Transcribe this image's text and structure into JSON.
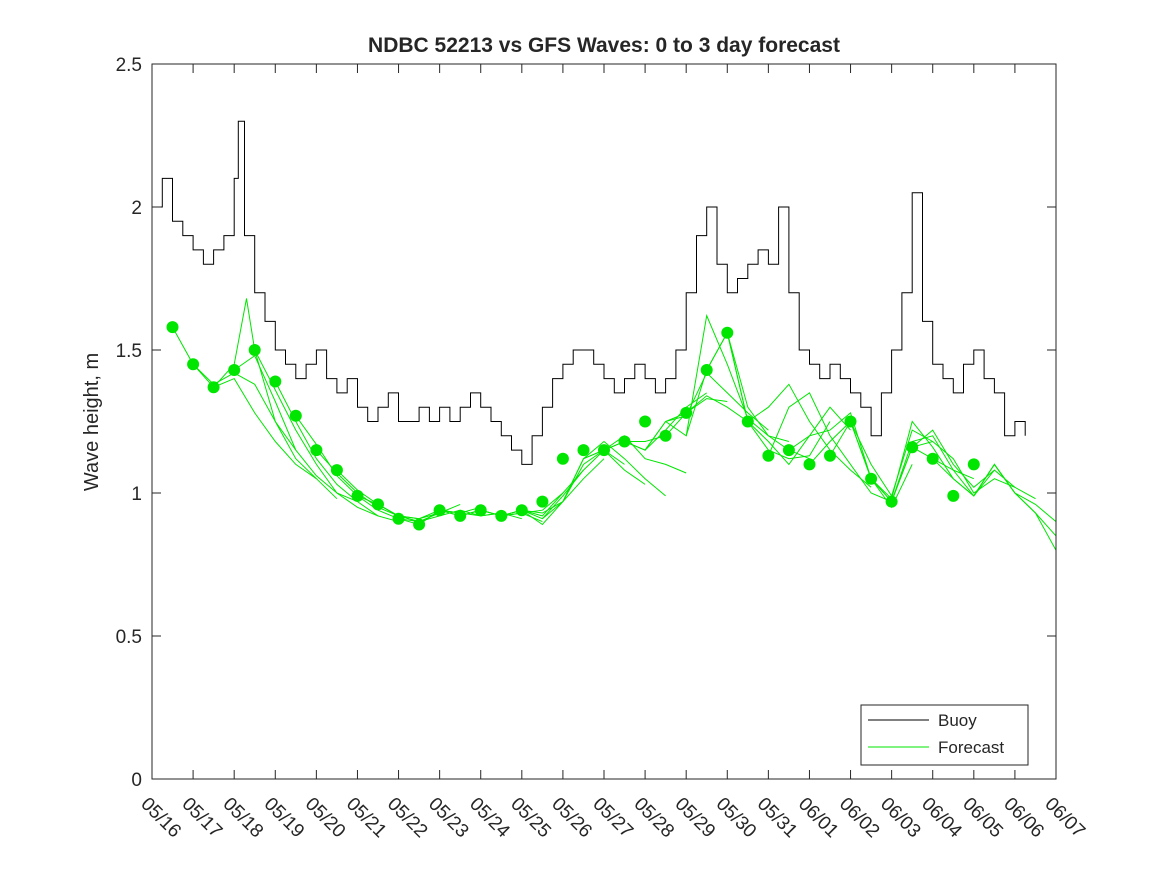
{
  "chart_data": {
    "type": "line",
    "title": "NDBC 52213 vs GFS Waves: 0 to 3 day forecast",
    "xlabel": "",
    "ylabel": "Wave height, m",
    "ylim": [
      0,
      2.5
    ],
    "yticks": [
      "0",
      "0.5",
      "1",
      "1.5",
      "2",
      "2.5"
    ],
    "xlim": [
      0,
      22
    ],
    "xticks": [
      "05/16",
      "05/17",
      "05/18",
      "05/19",
      "05/20",
      "05/21",
      "05/22",
      "05/23",
      "05/24",
      "05/25",
      "05/26",
      "05/27",
      "05/28",
      "05/29",
      "05/30",
      "05/31",
      "06/01",
      "06/02",
      "06/03",
      "06/04",
      "06/05",
      "06/06",
      "06/07"
    ],
    "grid": false,
    "legend": {
      "position": "bottom-right",
      "entries": [
        "Buoy",
        "Forecast"
      ]
    },
    "colors": {
      "buoy": "#000000",
      "forecast": "#00e600",
      "axes": "#262626"
    },
    "series": [
      {
        "name": "Buoy",
        "x": [
          0,
          0.25,
          0.5,
          0.75,
          1,
          1.25,
          1.5,
          1.75,
          2,
          2.1,
          2.25,
          2.5,
          2.75,
          3,
          3.25,
          3.5,
          3.75,
          4,
          4.25,
          4.5,
          4.75,
          5,
          5.25,
          5.5,
          5.75,
          6,
          6.25,
          6.5,
          6.75,
          7,
          7.25,
          7.5,
          7.75,
          8,
          8.25,
          8.5,
          8.75,
          9,
          9.25,
          9.5,
          9.75,
          10,
          10.25,
          10.5,
          10.75,
          11,
          11.25,
          11.5,
          11.75,
          12,
          12.25,
          12.5,
          12.75,
          13,
          13.25,
          13.5,
          13.75,
          14,
          14.25,
          14.5,
          14.75,
          15,
          15.25,
          15.5,
          15.75,
          16,
          16.25,
          16.5,
          16.75,
          17,
          17.25,
          17.5,
          17.75,
          18,
          18.25,
          18.5,
          18.75,
          19,
          19.25,
          19.5,
          19.75,
          20,
          20.25,
          20.5,
          20.75,
          21,
          21.25
        ],
        "values": [
          2.0,
          2.1,
          1.95,
          1.9,
          1.85,
          1.8,
          1.85,
          1.9,
          2.1,
          2.3,
          1.9,
          1.7,
          1.6,
          1.5,
          1.45,
          1.4,
          1.45,
          1.5,
          1.4,
          1.35,
          1.4,
          1.3,
          1.25,
          1.3,
          1.35,
          1.25,
          1.25,
          1.3,
          1.25,
          1.3,
          1.25,
          1.3,
          1.35,
          1.3,
          1.25,
          1.2,
          1.15,
          1.1,
          1.2,
          1.3,
          1.4,
          1.45,
          1.5,
          1.5,
          1.45,
          1.4,
          1.35,
          1.4,
          1.45,
          1.4,
          1.35,
          1.4,
          1.5,
          1.7,
          1.9,
          2.0,
          1.8,
          1.7,
          1.75,
          1.8,
          1.85,
          1.8,
          2.0,
          1.7,
          1.5,
          1.45,
          1.4,
          1.45,
          1.4,
          1.35,
          1.3,
          1.2,
          1.35,
          1.5,
          1.7,
          2.05,
          1.6,
          1.45,
          1.4,
          1.35,
          1.45,
          1.5,
          1.4,
          1.35,
          1.2,
          1.25,
          1.2
        ]
      },
      {
        "name": "Forecast",
        "runs": [
          {
            "x": [
              0.5,
              1,
              1.5,
              2,
              2.5,
              3,
              3.5
            ],
            "values": [
              1.58,
              1.45,
              1.38,
              1.42,
              1.38,
              1.25,
              1.15
            ]
          },
          {
            "x": [
              1,
              1.5,
              2,
              2.5,
              3,
              3.5,
              4
            ],
            "values": [
              1.45,
              1.37,
              1.4,
              1.28,
              1.18,
              1.1,
              1.05
            ]
          },
          {
            "x": [
              1.5,
              2,
              2.3,
              2.5,
              3,
              3.5,
              4,
              4.5
            ],
            "values": [
              1.37,
              1.45,
              1.68,
              1.5,
              1.25,
              1.12,
              1.05,
              0.98
            ]
          },
          {
            "x": [
              2,
              2.5,
              3,
              3.5,
              4,
              4.5,
              5
            ],
            "values": [
              1.43,
              1.48,
              1.32,
              1.15,
              1.06,
              1.0,
              0.97
            ]
          },
          {
            "x": [
              2.5,
              3,
              3.5,
              4,
              4.5,
              5,
              5.5
            ],
            "values": [
              1.5,
              1.36,
              1.22,
              1.1,
              1.0,
              0.95,
              0.92
            ]
          },
          {
            "x": [
              3,
              3.5,
              4,
              4.5,
              5,
              5.5,
              6
            ],
            "values": [
              1.39,
              1.25,
              1.12,
              1.03,
              0.97,
              0.92,
              0.9
            ]
          },
          {
            "x": [
              3.5,
              4,
              4.5,
              5,
              5.5,
              6,
              6.5
            ],
            "values": [
              1.27,
              1.17,
              1.06,
              0.99,
              0.94,
              0.91,
              0.9
            ]
          },
          {
            "x": [
              4,
              4.5,
              5,
              5.5,
              6,
              6.5,
              7
            ],
            "values": [
              1.15,
              1.07,
              1.0,
              0.95,
              0.92,
              0.91,
              0.93
            ]
          },
          {
            "x": [
              4.5,
              5,
              5.5,
              6,
              6.5,
              7,
              7.5
            ],
            "values": [
              1.08,
              1.01,
              0.96,
              0.92,
              0.9,
              0.93,
              0.96
            ]
          },
          {
            "x": [
              5,
              5.5,
              6,
              6.5,
              7,
              7.5,
              8
            ],
            "values": [
              0.99,
              0.96,
              0.92,
              0.91,
              0.94,
              0.93,
              0.95
            ]
          },
          {
            "x": [
              5.5,
              6,
              6.5,
              7,
              7.5,
              8,
              8.5
            ],
            "values": [
              0.96,
              0.92,
              0.9,
              0.92,
              0.94,
              0.92,
              0.93
            ]
          },
          {
            "x": [
              6,
              6.5,
              7,
              7.5,
              8,
              8.5,
              9
            ],
            "values": [
              0.91,
              0.89,
              0.94,
              0.93,
              0.92,
              0.93,
              0.91
            ]
          },
          {
            "x": [
              6.5,
              7,
              7.5,
              8,
              8.5,
              9,
              9.5
            ],
            "values": [
              0.89,
              0.94,
              0.92,
              0.94,
              0.92,
              0.93,
              0.9
            ]
          },
          {
            "x": [
              7,
              7.5,
              8,
              8.5,
              9,
              9.5,
              10
            ],
            "values": [
              0.94,
              0.92,
              0.94,
              0.92,
              0.93,
              0.94,
              1.0
            ]
          },
          {
            "x": [
              7.5,
              8,
              8.5,
              9,
              9.5,
              10,
              10.5
            ],
            "values": [
              0.92,
              0.94,
              0.92,
              0.94,
              0.92,
              1.0,
              1.08
            ]
          },
          {
            "x": [
              8,
              8.5,
              9,
              9.5,
              10,
              10.5,
              11
            ],
            "values": [
              0.94,
              0.92,
              0.94,
              0.93,
              0.97,
              1.05,
              1.12
            ]
          },
          {
            "x": [
              8.5,
              9,
              9.5,
              10,
              10.5,
              11,
              11.5
            ],
            "values": [
              0.92,
              0.94,
              0.91,
              0.99,
              1.08,
              1.15,
              1.1
            ]
          },
          {
            "x": [
              9,
              9.5,
              10,
              10.5,
              11,
              11.5,
              12
            ],
            "values": [
              0.94,
              0.89,
              0.97,
              1.1,
              1.15,
              1.08,
              1.03
            ]
          },
          {
            "x": [
              9.5,
              10,
              10.5,
              11,
              11.5,
              12,
              12.5
            ],
            "values": [
              0.91,
              0.97,
              1.12,
              1.18,
              1.12,
              1.05,
              0.99
            ]
          },
          {
            "x": [
              10,
              10.5,
              11,
              11.5,
              12,
              12.5,
              13
            ],
            "values": [
              0.97,
              1.12,
              1.15,
              1.2,
              1.12,
              1.1,
              1.07
            ]
          },
          {
            "x": [
              10.5,
              11,
              11.5,
              12,
              12.5,
              13,
              13.5
            ],
            "values": [
              1.12,
              1.15,
              1.18,
              1.15,
              1.22,
              1.3,
              1.35
            ]
          },
          {
            "x": [
              11,
              11.5,
              12,
              12.5,
              13,
              13.5,
              14
            ],
            "values": [
              1.15,
              1.18,
              1.18,
              1.2,
              1.28,
              1.33,
              1.32
            ]
          },
          {
            "x": [
              11.5,
              12,
              12.5,
              13,
              13.5,
              14,
              14.5
            ],
            "values": [
              1.18,
              1.15,
              1.25,
              1.28,
              1.34,
              1.3,
              1.25
            ]
          },
          {
            "x": [
              12,
              12.5,
              13,
              13.5,
              14,
              14.5,
              15
            ],
            "values": [
              1.15,
              1.25,
              1.27,
              1.42,
              1.35,
              1.28,
              1.22
            ]
          },
          {
            "x": [
              12.5,
              13,
              13.5,
              14,
              14.5,
              15,
              15.5
            ],
            "values": [
              1.25,
              1.2,
              1.62,
              1.45,
              1.26,
              1.2,
              1.18
            ]
          },
          {
            "x": [
              13,
              13.5,
              14,
              14.5,
              15,
              15.5,
              16
            ],
            "values": [
              1.2,
              1.43,
              1.56,
              1.3,
              1.2,
              1.15,
              1.12
            ]
          },
          {
            "x": [
              13.5,
              14,
              14.5,
              15,
              15.5,
              16,
              16.5
            ],
            "values": [
              1.43,
              1.56,
              1.25,
              1.15,
              1.12,
              1.13,
              1.25
            ]
          },
          {
            "x": [
              14,
              14.5,
              15,
              15.5,
              16,
              16.5,
              17
            ],
            "values": [
              1.56,
              1.25,
              1.18,
              1.1,
              1.2,
              1.3,
              1.22
            ]
          },
          {
            "x": [
              14.5,
              15,
              15.5,
              16,
              16.5,
              17,
              17.5
            ],
            "values": [
              1.25,
              1.3,
              1.38,
              1.25,
              1.15,
              1.08,
              1.02
            ]
          },
          {
            "x": [
              15,
              15.5,
              16,
              16.5,
              17,
              17.5,
              18
            ],
            "values": [
              1.13,
              1.3,
              1.35,
              1.2,
              1.1,
              1.0,
              0.97
            ]
          },
          {
            "x": [
              15.5,
              16,
              16.5,
              17,
              17.5,
              18,
              18.5
            ],
            "values": [
              1.15,
              1.2,
              1.22,
              1.28,
              1.05,
              0.95,
              1.1
            ]
          },
          {
            "x": [
              16,
              16.5,
              17,
              17.5,
              18,
              18.5,
              19
            ],
            "values": [
              1.1,
              1.18,
              1.25,
              1.1,
              0.99,
              1.22,
              1.18
            ]
          },
          {
            "x": [
              16.5,
              17,
              17.5,
              18,
              18.5,
              19,
              19.5
            ],
            "values": [
              1.13,
              1.25,
              1.05,
              0.98,
              1.25,
              1.16,
              1.05
            ]
          },
          {
            "x": [
              17,
              17.5,
              18,
              18.5,
              19,
              19.5,
              20
            ],
            "values": [
              1.25,
              1.05,
              0.97,
              1.18,
              1.2,
              1.08,
              1.05
            ]
          },
          {
            "x": [
              17.5,
              18,
              18.5,
              19,
              19.5,
              20,
              20.5
            ],
            "values": [
              1.05,
              0.97,
              1.16,
              1.22,
              1.1,
              1.02,
              1.08
            ]
          },
          {
            "x": [
              18,
              18.5,
              19,
              19.5,
              20,
              20.5,
              21
            ],
            "values": [
              0.97,
              1.16,
              1.18,
              1.12,
              1.0,
              1.05,
              1.02
            ]
          },
          {
            "x": [
              18.5,
              19,
              19.5,
              20,
              20.5,
              21,
              21.5
            ],
            "values": [
              1.16,
              1.12,
              1.08,
              0.99,
              1.08,
              1.02,
              0.98
            ]
          },
          {
            "x": [
              19,
              19.5,
              20,
              20.5,
              21,
              21.5,
              22
            ],
            "values": [
              1.12,
              1.05,
              0.99,
              1.1,
              1.0,
              0.96,
              0.9
            ]
          },
          {
            "x": [
              19.5,
              20,
              20.5,
              21,
              21.5,
              22
            ],
            "values": [
              1.05,
              0.99,
              1.1,
              1.0,
              0.93,
              0.8
            ]
          },
          {
            "x": [
              20,
              20.5,
              21,
              21.5,
              22
            ],
            "values": [
              0.99,
              1.1,
              1.0,
              0.93,
              0.85
            ]
          }
        ],
        "analysis_points": {
          "x": [
            0.5,
            1,
            1.5,
            2,
            2.5,
            3,
            3.5,
            4,
            4.5,
            5,
            5.5,
            6,
            6.5,
            7,
            7.5,
            8,
            8.5,
            9,
            9.5,
            10,
            10.5,
            11,
            11.5,
            12,
            12.5,
            13,
            13.5,
            14,
            14.5,
            15,
            15.5,
            16,
            16.5,
            17,
            17.5,
            18,
            18.5,
            19,
            19.5,
            20
          ],
          "values": [
            1.58,
            1.45,
            1.37,
            1.43,
            1.5,
            1.39,
            1.27,
            1.15,
            1.08,
            0.99,
            0.96,
            0.91,
            0.89,
            0.94,
            0.92,
            0.94,
            0.92,
            0.94,
            0.97,
            1.12,
            1.15,
            1.15,
            1.18,
            1.25,
            1.2,
            1.28,
            1.43,
            1.56,
            1.25,
            1.13,
            1.15,
            1.1,
            1.13,
            1.25,
            1.05,
            0.97,
            1.16,
            1.12,
            0.99,
            1.1
          ]
        }
      }
    ]
  }
}
